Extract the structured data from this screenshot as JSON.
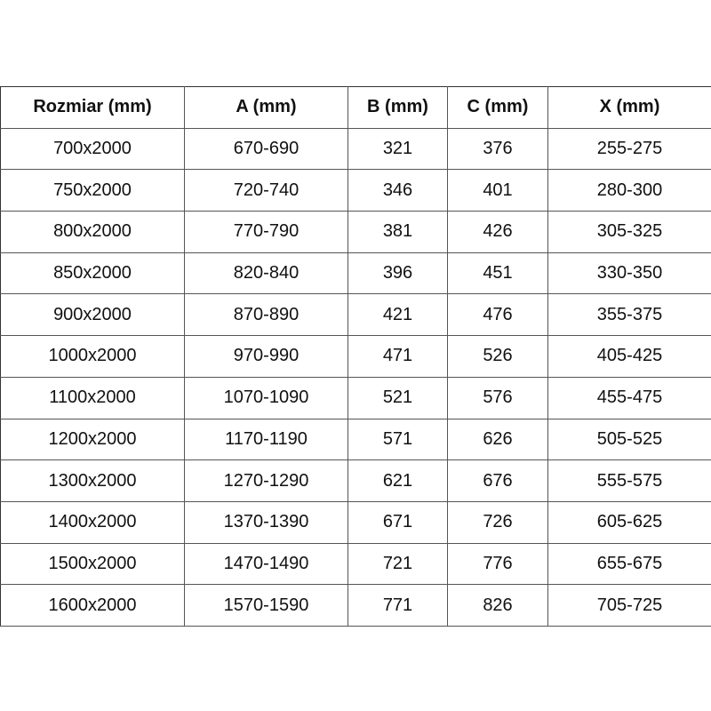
{
  "table": {
    "headers": [
      "Rozmiar (mm)",
      "A (mm)",
      "B (mm)",
      "C (mm)",
      "X (mm)"
    ],
    "rows": [
      [
        "700x2000",
        "670-690",
        "321",
        "376",
        "255-275"
      ],
      [
        "750x2000",
        "720-740",
        "346",
        "401",
        "280-300"
      ],
      [
        "800x2000",
        "770-790",
        "381",
        "426",
        "305-325"
      ],
      [
        "850x2000",
        "820-840",
        "396",
        "451",
        "330-350"
      ],
      [
        "900x2000",
        "870-890",
        "421",
        "476",
        "355-375"
      ],
      [
        "1000x2000",
        "970-990",
        "471",
        "526",
        "405-425"
      ],
      [
        "1100x2000",
        "1070-1090",
        "521",
        "576",
        "455-475"
      ],
      [
        "1200x2000",
        "1170-1190",
        "571",
        "626",
        "505-525"
      ],
      [
        "1300x2000",
        "1270-1290",
        "621",
        "676",
        "555-575"
      ],
      [
        "1400x2000",
        "1370-1390",
        "671",
        "726",
        "605-625"
      ],
      [
        "1500x2000",
        "1470-1490",
        "721",
        "776",
        "655-675"
      ],
      [
        "1600x2000",
        "1570-1590",
        "771",
        "826",
        "705-725"
      ]
    ]
  }
}
